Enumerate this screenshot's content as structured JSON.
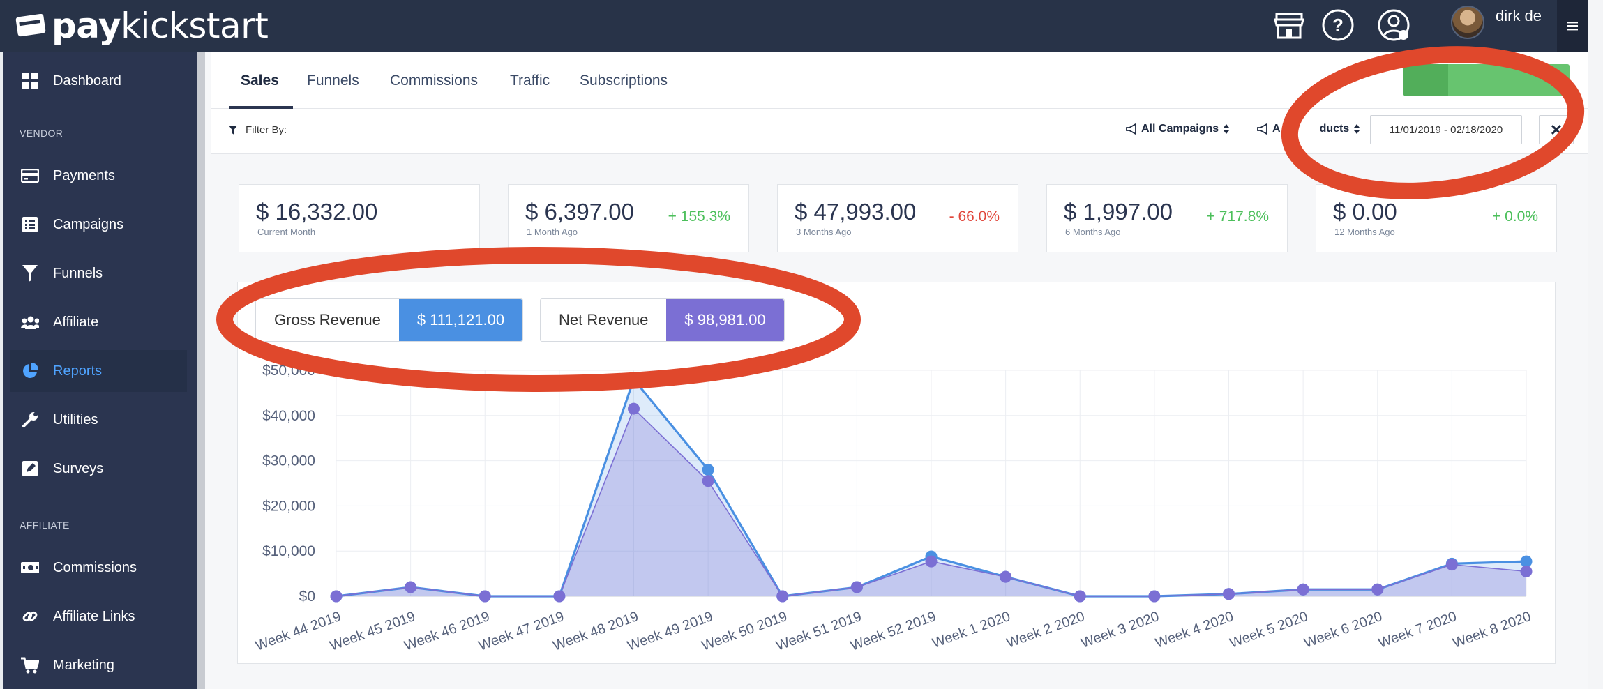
{
  "app": {
    "brand_bold": "pay",
    "brand_rest": "kickstart"
  },
  "header": {
    "user_name": "dirk de",
    "icons": [
      "storefront-icon",
      "help-icon",
      "user-switch-icon"
    ]
  },
  "sidebar": {
    "vendor_heading": "VENDOR",
    "affiliate_heading": "AFFILIATE",
    "items": [
      {
        "label": "Dashboard",
        "icon": "dashboard-icon"
      },
      {
        "label": "Payments",
        "icon": "credit-card-icon"
      },
      {
        "label": "Campaigns",
        "icon": "list-icon"
      },
      {
        "label": "Funnels",
        "icon": "funnel-icon"
      },
      {
        "label": "Affiliate",
        "icon": "users-icon"
      },
      {
        "label": "Reports",
        "icon": "pie-chart-icon",
        "active": true
      },
      {
        "label": "Utilities",
        "icon": "wrench-icon"
      },
      {
        "label": "Surveys",
        "icon": "edit-icon"
      },
      {
        "label": "Commissions",
        "icon": "money-icon"
      },
      {
        "label": "Affiliate Links",
        "icon": "link-icon"
      },
      {
        "label": "Marketing",
        "icon": "cart-icon"
      }
    ]
  },
  "tabs": [
    "Sales",
    "Funnels",
    "Commissions",
    "Traffic",
    "Subscriptions"
  ],
  "filters": {
    "label": "Filter By:",
    "campaigns": "All Campaigns",
    "products_visible": "A",
    "products_tail": "ducts",
    "date_range": "11/01/2019 - 02/18/2020"
  },
  "stats": [
    {
      "amount": "$ 16,332.00",
      "label": "Current Month",
      "change": ""
    },
    {
      "amount": "$ 6,397.00",
      "label": "1 Month Ago",
      "change": "+ 155.3%",
      "dir": "up"
    },
    {
      "amount": "$ 47,993.00",
      "label": "3 Months Ago",
      "change": "- 66.0%",
      "dir": "down"
    },
    {
      "amount": "$ 1,997.00",
      "label": "6 Months Ago",
      "change": "+ 717.8%",
      "dir": "up"
    },
    {
      "amount": "$ 0.00",
      "label": "12 Months Ago",
      "change": "+ 0.0%",
      "dir": "up"
    }
  ],
  "revenue": {
    "gross_label": "Gross Revenue",
    "gross_value": "$ 111,121.00",
    "net_label": "Net Revenue",
    "net_value": "$ 98,981.00"
  },
  "colors": {
    "gross": "#4a90e2",
    "net": "#7b6fd4",
    "annotation": "#e0482c",
    "sidebar": "#2b3550",
    "accent": "#4fa3ff"
  },
  "chart_data": {
    "type": "area",
    "categories": [
      "Week 44 2019",
      "Week 45 2019",
      "Week 46 2019",
      "Week 47 2019",
      "Week 48 2019",
      "Week 49 2019",
      "Week 50 2019",
      "Week 51 2019",
      "Week 52 2019",
      "Week 1 2020",
      "Week 2 2020",
      "Week 3 2020",
      "Week 4 2020",
      "Week 5 2020",
      "Week 6 2020",
      "Week 7 2020",
      "Week 8 2020"
    ],
    "series": [
      {
        "name": "Gross Revenue",
        "values": [
          0,
          2000,
          0,
          0,
          47993,
          28000,
          0,
          2000,
          8800,
          4300,
          0,
          0,
          500,
          1500,
          1500,
          7200,
          7700
        ]
      },
      {
        "name": "Net Revenue",
        "values": [
          0,
          2000,
          0,
          0,
          41500,
          25500,
          0,
          2000,
          7700,
          4300,
          0,
          0,
          500,
          1500,
          1500,
          7000,
          5500
        ]
      }
    ],
    "y_ticks": [
      "$0",
      "$10,000",
      "$20,000",
      "$30,000",
      "$40,000",
      "$50,000"
    ],
    "ylim": [
      0,
      50000
    ],
    "grid": true
  }
}
